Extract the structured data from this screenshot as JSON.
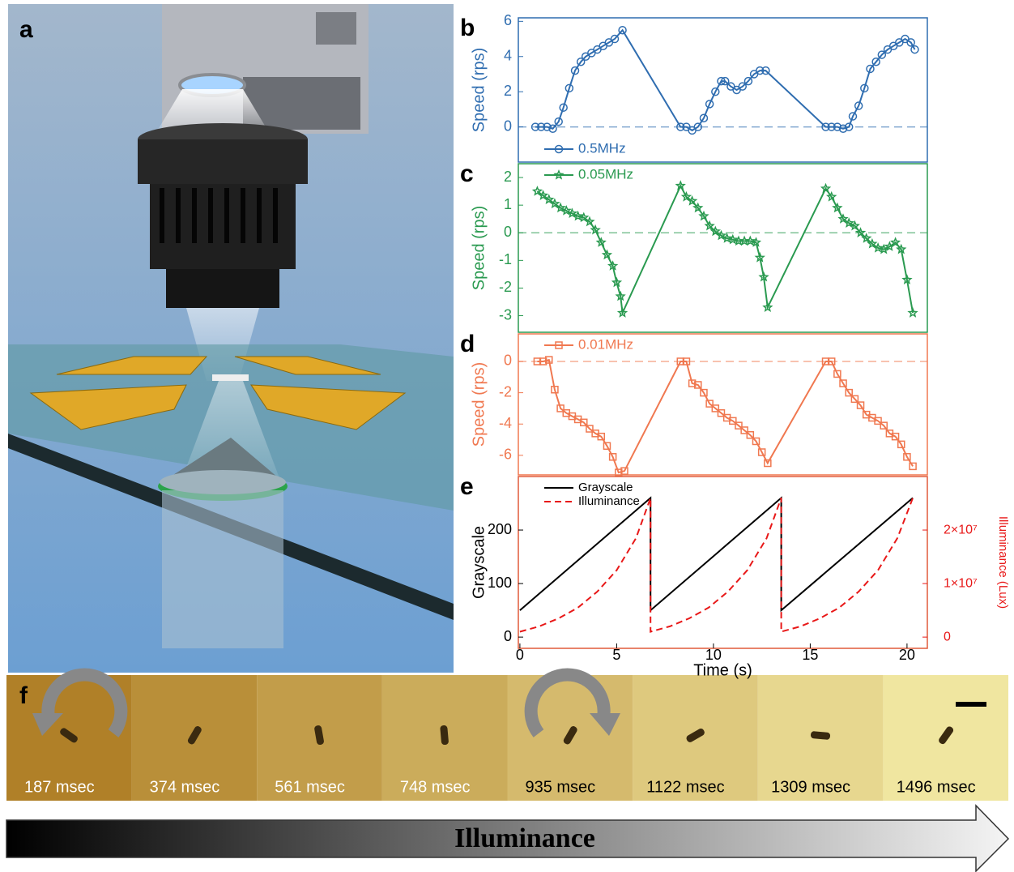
{
  "figure": {
    "panel_a": "a",
    "panel_f": "f",
    "frames": [
      "187 msec",
      "374 msec",
      "561 msec",
      "748 msec",
      "935 msec",
      "1122 msec",
      "1309 msec",
      "1496 msec"
    ],
    "arrow_label": "Illuminance"
  },
  "chart_data": [
    {
      "type": "line",
      "panel": "b",
      "ylabel": "Speed (rps)",
      "color": "#2f6db0",
      "xlim": [
        -0.08,
        21.05
      ],
      "ylim": [
        -2,
        6.2
      ],
      "yticks": [
        0,
        2,
        4,
        6
      ],
      "reference_line": 0,
      "legend": "lower left",
      "series": [
        {
          "name": "0.5MHz",
          "color": "#2f6db0",
          "marker": "circle",
          "x": [
            0.8,
            1.1,
            1.4,
            1.7,
            2.0,
            2.25,
            2.55,
            2.85,
            3.15,
            3.4,
            3.7,
            4.0,
            4.3,
            4.6,
            4.9,
            5.3,
            8.3,
            8.6,
            8.9,
            9.2,
            9.5,
            9.8,
            10.1,
            10.4,
            10.6,
            10.9,
            11.2,
            11.5,
            11.8,
            12.1,
            12.4,
            12.7,
            15.8,
            16.1,
            16.4,
            16.7,
            17.0,
            17.2,
            17.5,
            17.8,
            18.1,
            18.4,
            18.7,
            19.0,
            19.3,
            19.6,
            19.9,
            20.2,
            20.4
          ],
          "values": [
            0,
            0,
            0,
            -0.1,
            0.3,
            1.1,
            2.2,
            3.2,
            3.7,
            4.0,
            4.2,
            4.4,
            4.6,
            4.8,
            5.0,
            5.5,
            0,
            0,
            -0.2,
            0,
            0.5,
            1.3,
            2.0,
            2.6,
            2.6,
            2.3,
            2.1,
            2.3,
            2.6,
            3.0,
            3.2,
            3.2,
            0,
            0,
            0,
            -0.1,
            0,
            0.6,
            1.2,
            2.2,
            3.3,
            3.7,
            4.1,
            4.4,
            4.6,
            4.8,
            5.0,
            4.8,
            4.4
          ]
        }
      ]
    },
    {
      "type": "line",
      "panel": "c",
      "ylabel": "Speed (rps)",
      "color": "#2a9a50",
      "xlim": [
        -0.08,
        21.05
      ],
      "ylim": [
        -3.6,
        2.5
      ],
      "yticks": [
        -3,
        -2,
        -1,
        0,
        1,
        2
      ],
      "reference_line": 0,
      "legend": "upper left",
      "series": [
        {
          "name": "0.05MHz",
          "color": "#2a9a50",
          "marker": "star",
          "x": [
            0.9,
            1.2,
            1.5,
            1.8,
            2.1,
            2.4,
            2.7,
            3.0,
            3.3,
            3.6,
            3.9,
            4.2,
            4.5,
            4.8,
            5.0,
            5.2,
            5.3,
            8.3,
            8.6,
            8.9,
            9.2,
            9.5,
            9.8,
            10.1,
            10.4,
            10.7,
            11.0,
            11.3,
            11.6,
            11.9,
            12.2,
            12.4,
            12.6,
            12.8,
            15.8,
            16.1,
            16.4,
            16.7,
            17.0,
            17.3,
            17.6,
            17.9,
            18.2,
            18.5,
            18.8,
            19.1,
            19.4,
            19.7,
            20.0,
            20.3
          ],
          "values": [
            1.5,
            1.35,
            1.2,
            1.05,
            0.9,
            0.8,
            0.7,
            0.6,
            0.55,
            0.4,
            0.1,
            -0.35,
            -0.8,
            -1.2,
            -1.8,
            -2.3,
            -2.9,
            1.7,
            1.3,
            1.15,
            0.9,
            0.6,
            0.25,
            0.05,
            -0.1,
            -0.2,
            -0.25,
            -0.3,
            -0.3,
            -0.3,
            -0.35,
            -0.9,
            -1.6,
            -2.7,
            1.6,
            1.3,
            0.9,
            0.5,
            0.35,
            0.25,
            0.0,
            -0.2,
            -0.4,
            -0.55,
            -0.6,
            -0.5,
            -0.35,
            -0.6,
            -1.7,
            -2.9
          ]
        }
      ]
    },
    {
      "type": "line",
      "panel": "d",
      "ylabel": "Speed (rps)",
      "color": "#f07850",
      "xlim": [
        -0.08,
        21.05
      ],
      "ylim": [
        -7.25,
        1.76
      ],
      "yticks": [
        -6,
        -4,
        -2,
        0
      ],
      "reference_line": 0,
      "legend": "upper left",
      "series": [
        {
          "name": "0.01MHz",
          "color": "#f07850",
          "marker": "square",
          "x": [
            0.9,
            1.2,
            1.5,
            1.8,
            2.1,
            2.4,
            2.7,
            3.0,
            3.3,
            3.6,
            3.9,
            4.2,
            4.5,
            4.8,
            5.1,
            5.4,
            8.3,
            8.6,
            8.9,
            9.2,
            9.5,
            9.8,
            10.1,
            10.4,
            10.7,
            11.0,
            11.3,
            11.6,
            11.9,
            12.2,
            12.5,
            12.8,
            15.8,
            16.1,
            16.4,
            16.7,
            17.0,
            17.3,
            17.6,
            17.9,
            18.2,
            18.5,
            18.8,
            19.1,
            19.4,
            19.7,
            20.0,
            20.3
          ],
          "values": [
            0,
            0,
            0.1,
            -1.8,
            -3.0,
            -3.3,
            -3.5,
            -3.7,
            -3.9,
            -4.3,
            -4.6,
            -4.8,
            -5.4,
            -6.1,
            -7.1,
            -7.0,
            0,
            0,
            -1.4,
            -1.5,
            -2.0,
            -2.7,
            -3.0,
            -3.3,
            -3.6,
            -3.8,
            -4.1,
            -4.4,
            -4.7,
            -5.1,
            -5.8,
            -6.5,
            0,
            0,
            -0.8,
            -1.4,
            -2.0,
            -2.4,
            -2.8,
            -3.4,
            -3.6,
            -3.8,
            -4.1,
            -4.6,
            -4.8,
            -5.3,
            -6.1,
            -6.7
          ]
        }
      ]
    },
    {
      "type": "line",
      "panel": "e",
      "ylabel": "Grayscale",
      "y2label": "Illuminance (Lux)",
      "xlabel": "Time (s)",
      "color": "#e05a3a",
      "xlim": [
        -0.08,
        21.05
      ],
      "xticks": [
        0,
        5,
        10,
        15,
        20
      ],
      "ylim": [
        -21,
        300
      ],
      "yticks": [
        0,
        100,
        200
      ],
      "y2lim": [
        -2100000,
        30000000
      ],
      "y2ticks": [
        0,
        {
          "value": 10000000,
          "label": "1×10⁷"
        },
        {
          "value": 20000000,
          "label": "2×10⁷"
        }
      ],
      "legend": "upper left",
      "series": [
        {
          "name": "Grayscale",
          "color": "#000000",
          "x": [
            0,
            6.75,
            6.75,
            13.5,
            13.5,
            20.3
          ],
          "values": [
            50,
            260,
            50,
            260,
            50,
            260
          ]
        },
        {
          "name": "Illuminance",
          "color": "#e81818",
          "dash": true,
          "axis": "y2",
          "x": [
            0,
            1,
            2,
            3,
            4,
            5,
            6,
            6.75,
            6.75,
            7.75,
            8.75,
            9.75,
            10.75,
            11.75,
            12.75,
            13.5,
            13.5,
            14.5,
            15.5,
            16.5,
            17.5,
            18.5,
            19.5,
            20.3
          ],
          "values": [
            1000000,
            2000000,
            3500000,
            5500000,
            8500000,
            12500000,
            18500000,
            26000000,
            1000000,
            2000000,
            3500000,
            5500000,
            8500000,
            12500000,
            18500000,
            26000000,
            1000000,
            2000000,
            3500000,
            5500000,
            8500000,
            12500000,
            18500000,
            26000000
          ]
        }
      ]
    }
  ]
}
